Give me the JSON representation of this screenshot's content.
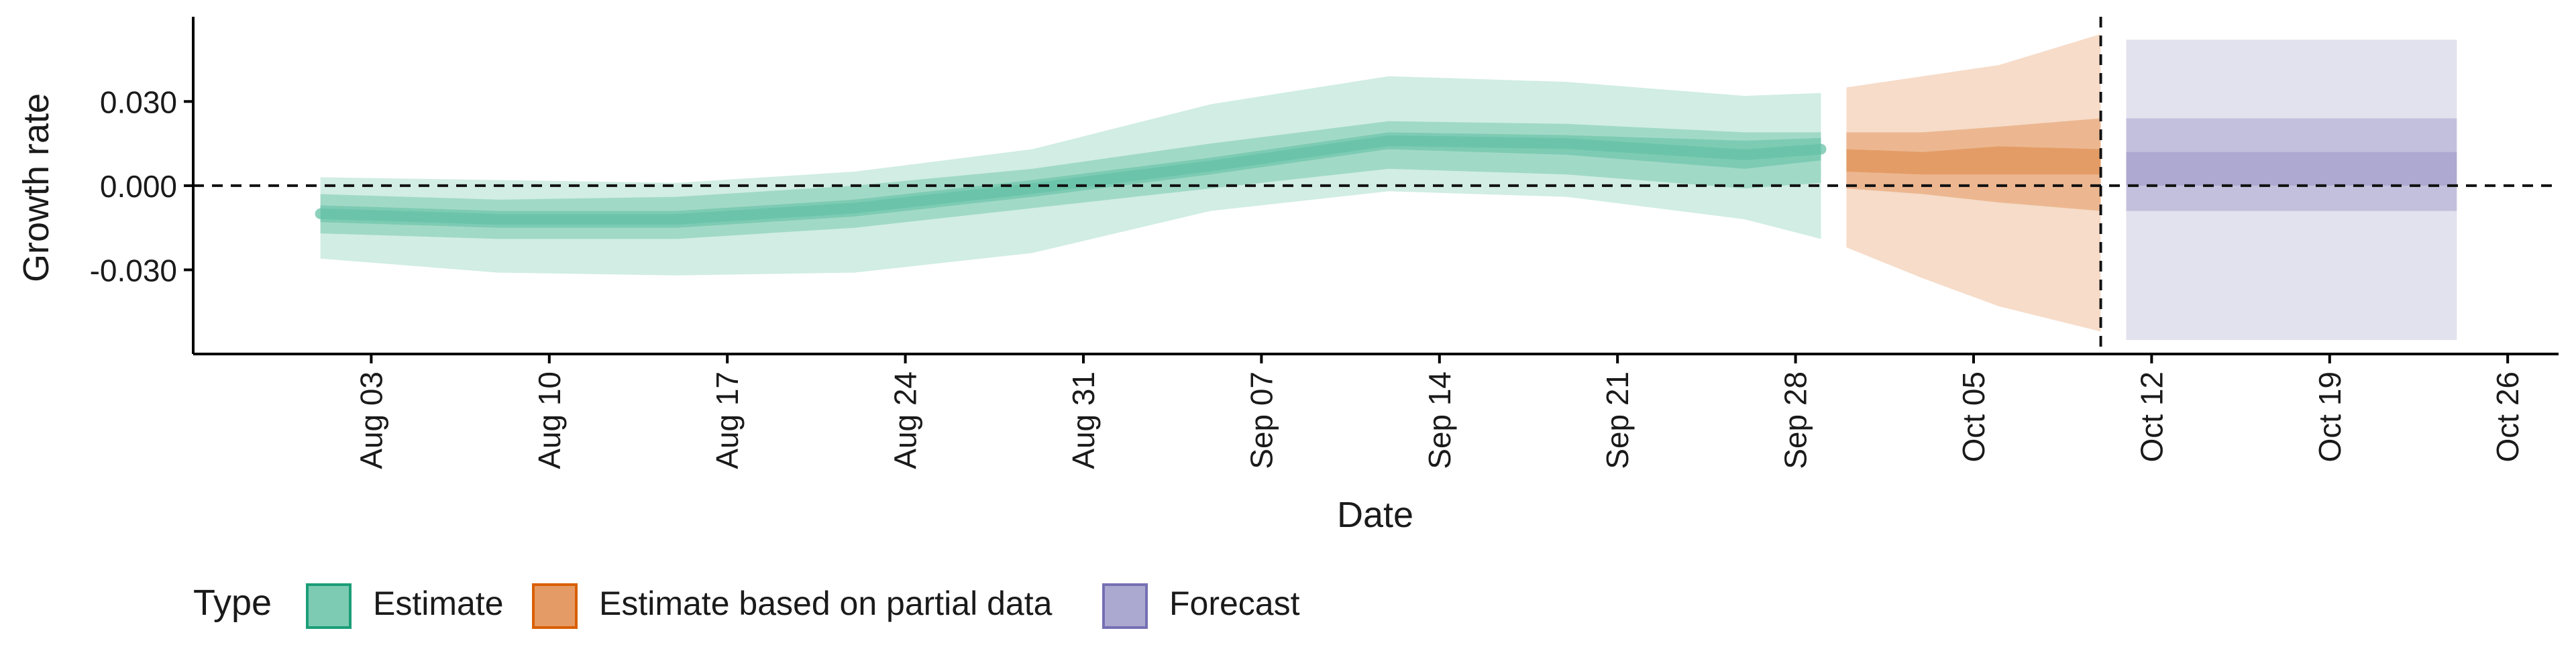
{
  "chart_data": {
    "type": "area",
    "xlabel": "Date",
    "ylabel": "Growth rate",
    "x_ticks": [
      "Aug 03",
      "Aug 10",
      "Aug 17",
      "Aug 24",
      "Aug 31",
      "Sep 07",
      "Sep 14",
      "Sep 21",
      "Sep 28",
      "Oct 05",
      "Oct 12",
      "Oct 19",
      "Oct 26"
    ],
    "y_ticks": [
      "0.030",
      "0.000",
      "-0.030"
    ],
    "xlim": [
      "2020-07-27",
      "2020-10-28"
    ],
    "ylim": [
      -0.06,
      0.059
    ],
    "reference_lines": {
      "horizontal_y": 0.0,
      "vertical_date": "2020-10-10"
    },
    "legend": {
      "title": "Type",
      "position": "bottom",
      "items": [
        "Estimate",
        "Estimate based on partial data",
        "Forecast"
      ]
    },
    "colors": {
      "Estimate": "#1b9e77",
      "Estimate based on partial data": "#d95f02",
      "Forecast": "#7570b3",
      "Estimate_fill": "#66c2a5",
      "Estimate based on partial data_fill": "#e08a4b",
      "Forecast_fill": "#9e9ac8"
    },
    "series": [
      {
        "name": "Estimate",
        "x": [
          "2020-08-01",
          "2020-08-08",
          "2020-08-15",
          "2020-08-22",
          "2020-08-29",
          "2020-09-05",
          "2020-09-12",
          "2020-09-19",
          "2020-09-26",
          "2020-09-29"
        ],
        "median": [
          -0.01,
          -0.012,
          -0.012,
          -0.008,
          -0.001,
          0.007,
          0.016,
          0.015,
          0.011,
          0.013
        ],
        "inner_lower": [
          -0.013,
          -0.015,
          -0.015,
          -0.011,
          -0.004,
          0.004,
          0.013,
          0.011,
          0.006,
          0.009
        ],
        "inner_upper": [
          -0.007,
          -0.009,
          -0.009,
          -0.005,
          0.002,
          0.01,
          0.019,
          0.018,
          0.016,
          0.017
        ],
        "mid_lower": [
          -0.017,
          -0.019,
          -0.019,
          -0.015,
          -0.008,
          -0.001,
          0.006,
          0.004,
          -0.001,
          0.001
        ],
        "mid_upper": [
          -0.003,
          -0.005,
          -0.004,
          0.0,
          0.006,
          0.015,
          0.023,
          0.022,
          0.019,
          0.019
        ],
        "outer_lower": [
          -0.026,
          -0.031,
          -0.032,
          -0.031,
          -0.024,
          -0.009,
          -0.002,
          -0.004,
          -0.012,
          -0.019
        ],
        "outer_upper": [
          0.003,
          0.002,
          0.001,
          0.005,
          0.013,
          0.029,
          0.039,
          0.037,
          0.032,
          0.033
        ]
      },
      {
        "name": "Estimate based on partial data",
        "x": [
          "2020-09-30",
          "2020-10-03",
          "2020-10-06",
          "2020-10-10"
        ],
        "median": [
          0.009,
          0.008,
          0.009,
          0.009
        ],
        "inner_lower": [
          0.005,
          0.004,
          0.004,
          0.004
        ],
        "inner_upper": [
          0.013,
          0.012,
          0.014,
          0.013
        ],
        "mid_lower": [
          -0.001,
          -0.003,
          -0.006,
          -0.009
        ],
        "mid_upper": [
          0.019,
          0.019,
          0.021,
          0.024
        ],
        "outer_lower": [
          -0.022,
          -0.033,
          -0.043,
          -0.052
        ],
        "outer_upper": [
          0.035,
          0.039,
          0.043,
          0.054
        ]
      },
      {
        "name": "Forecast",
        "x": [
          "2020-10-11",
          "2020-10-24"
        ],
        "median": [
          0.0,
          0.0
        ],
        "inner_lower": [
          0.0,
          0.0
        ],
        "inner_upper": [
          0.012,
          0.012
        ],
        "mid_lower": [
          -0.009,
          -0.009
        ],
        "mid_upper": [
          0.024,
          0.024
        ],
        "outer_lower": [
          -0.055,
          -0.055
        ],
        "outer_upper": [
          0.052,
          0.052
        ]
      }
    ]
  }
}
